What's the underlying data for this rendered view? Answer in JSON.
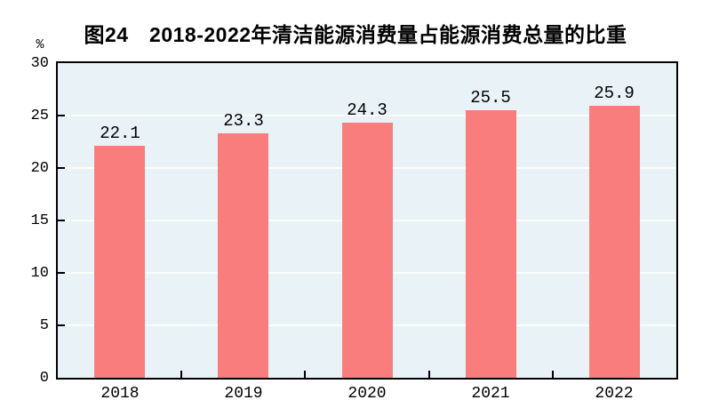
{
  "chart_data": {
    "type": "bar",
    "title": "图24　2018-2022年清洁能源消费量占能源消费总量的比重",
    "categories": [
      "2018",
      "2019",
      "2020",
      "2021",
      "2022"
    ],
    "values": [
      22.1,
      23.3,
      24.3,
      25.5,
      25.9
    ],
    "value_labels": [
      "22.1",
      "23.3",
      "24.3",
      "25.5",
      "25.9"
    ],
    "xlabel": "",
    "ylabel": "%",
    "ylim": [
      0,
      30
    ],
    "yticks": [
      0,
      5,
      10,
      15,
      20,
      25,
      30
    ],
    "grid": "horizontal",
    "legend": "none",
    "bar_color": "#f97d7d",
    "plot_bg_color": "#e9f2f6",
    "gridline_color": "#fafcfd",
    "axis_color": "#000000",
    "text_color": "#000000"
  }
}
